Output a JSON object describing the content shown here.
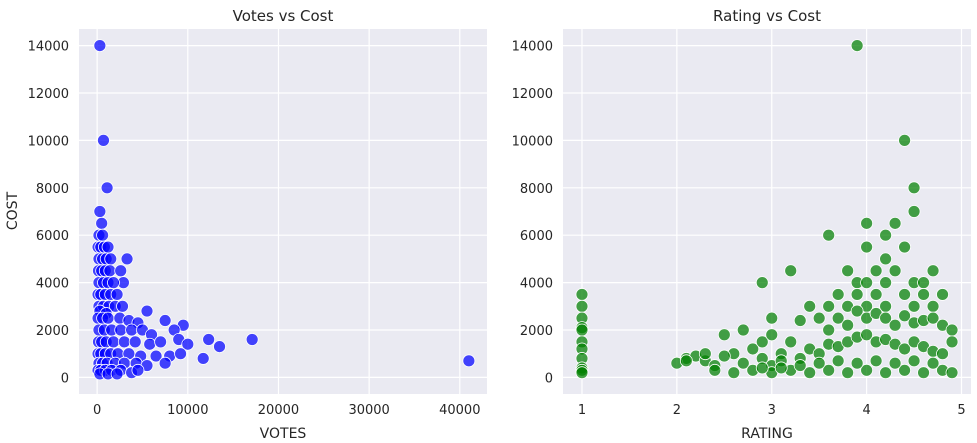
{
  "chart_data": [
    {
      "type": "scatter",
      "title": "Votes vs Cost",
      "xlabel": "VOTES",
      "ylabel": "COST",
      "xlim": [
        -2000,
        43000
      ],
      "ylim": [
        -700,
        14700
      ],
      "xticks": [
        0,
        10000,
        20000,
        30000,
        40000
      ],
      "yticks": [
        0,
        2000,
        4000,
        6000,
        8000,
        10000,
        12000,
        14000
      ],
      "grid": true,
      "color": "#0000ff",
      "points": [
        [
          300,
          14000
        ],
        [
          700,
          10000
        ],
        [
          1100,
          8000
        ],
        [
          300,
          7000
        ],
        [
          500,
          6500
        ],
        [
          200,
          6000
        ],
        [
          600,
          6000
        ],
        [
          100,
          5500
        ],
        [
          400,
          5500
        ],
        [
          800,
          5500
        ],
        [
          1200,
          5500
        ],
        [
          3300,
          5000
        ],
        [
          200,
          5000
        ],
        [
          600,
          5000
        ],
        [
          1000,
          5000
        ],
        [
          1500,
          5000
        ],
        [
          150,
          4500
        ],
        [
          500,
          4500
        ],
        [
          900,
          4500
        ],
        [
          1400,
          4500
        ],
        [
          2600,
          4500
        ],
        [
          2900,
          4000
        ],
        [
          200,
          4000
        ],
        [
          700,
          4000
        ],
        [
          1200,
          4000
        ],
        [
          1800,
          4000
        ],
        [
          100,
          3500
        ],
        [
          400,
          3500
        ],
        [
          900,
          3500
        ],
        [
          1500,
          3500
        ],
        [
          2200,
          3500
        ],
        [
          200,
          3000
        ],
        [
          700,
          3000
        ],
        [
          1300,
          3000
        ],
        [
          2000,
          3000
        ],
        [
          2800,
          3000
        ],
        [
          300,
          2800
        ],
        [
          1000,
          2700
        ],
        [
          5500,
          2800
        ],
        [
          7500,
          2400
        ],
        [
          9500,
          2200
        ],
        [
          100,
          2500
        ],
        [
          600,
          2500
        ],
        [
          1200,
          2500
        ],
        [
          2500,
          2500
        ],
        [
          3500,
          2400
        ],
        [
          4500,
          2300
        ],
        [
          200,
          2000
        ],
        [
          800,
          2000
        ],
        [
          1600,
          2000
        ],
        [
          2600,
          2000
        ],
        [
          3800,
          2000
        ],
        [
          5000,
          2000
        ],
        [
          6000,
          1800
        ],
        [
          8500,
          2000
        ],
        [
          150,
          1500
        ],
        [
          500,
          1500
        ],
        [
          1000,
          1500
        ],
        [
          1800,
          1500
        ],
        [
          3000,
          1500
        ],
        [
          4200,
          1500
        ],
        [
          5800,
          1400
        ],
        [
          7000,
          1500
        ],
        [
          9000,
          1600
        ],
        [
          10000,
          1400
        ],
        [
          12300,
          1600
        ],
        [
          13500,
          1300
        ],
        [
          17100,
          1600
        ],
        [
          100,
          1000
        ],
        [
          400,
          1000
        ],
        [
          900,
          1000
        ],
        [
          1500,
          1000
        ],
        [
          2300,
          1000
        ],
        [
          3500,
          1000
        ],
        [
          4800,
          900
        ],
        [
          6500,
          900
        ],
        [
          8000,
          900
        ],
        [
          9200,
          1000
        ],
        [
          11700,
          800
        ],
        [
          200,
          600
        ],
        [
          600,
          600
        ],
        [
          1100,
          600
        ],
        [
          2000,
          600
        ],
        [
          3000,
          600
        ],
        [
          4300,
          600
        ],
        [
          5500,
          500
        ],
        [
          7500,
          600
        ],
        [
          41000,
          700
        ],
        [
          100,
          300
        ],
        [
          400,
          300
        ],
        [
          900,
          300
        ],
        [
          1600,
          300
        ],
        [
          2600,
          300
        ],
        [
          3800,
          200
        ],
        [
          4500,
          300
        ],
        [
          300,
          150
        ],
        [
          1200,
          150
        ],
        [
          2200,
          150
        ]
      ]
    },
    {
      "type": "scatter",
      "title": "Rating vs Cost",
      "xlabel": "RATING",
      "ylabel": "",
      "xlim": [
        0.8,
        5.1
      ],
      "ylim": [
        -700,
        14700
      ],
      "xticks": [
        1,
        2,
        3,
        4,
        5
      ],
      "yticks": [
        0,
        2000,
        4000,
        6000,
        8000,
        10000,
        12000,
        14000
      ],
      "grid": true,
      "color": "#008000",
      "points": [
        [
          1,
          3500
        ],
        [
          1,
          3000
        ],
        [
          1,
          2500
        ],
        [
          1,
          2100
        ],
        [
          1,
          2000
        ],
        [
          1,
          1500
        ],
        [
          1,
          1200
        ],
        [
          1,
          800
        ],
        [
          1,
          400
        ],
        [
          1,
          300
        ],
        [
          1,
          200
        ],
        [
          3.9,
          14000
        ],
        [
          4.4,
          10000
        ],
        [
          4.5,
          8000
        ],
        [
          4.5,
          7000
        ],
        [
          4.0,
          6500
        ],
        [
          3.6,
          6000
        ],
        [
          4.2,
          6000
        ],
        [
          4.3,
          6500
        ],
        [
          4.0,
          5500
        ],
        [
          4.4,
          5500
        ],
        [
          4.2,
          5000
        ],
        [
          3.2,
          4500
        ],
        [
          2.9,
          4000
        ],
        [
          3.8,
          4500
        ],
        [
          4.1,
          4500
        ],
        [
          4.3,
          4500
        ],
        [
          4.7,
          4500
        ],
        [
          3.9,
          4000
        ],
        [
          4.0,
          4000
        ],
        [
          4.2,
          4000
        ],
        [
          4.5,
          4000
        ],
        [
          4.6,
          4000
        ],
        [
          3.7,
          3500
        ],
        [
          3.9,
          3500
        ],
        [
          4.1,
          3500
        ],
        [
          4.4,
          3500
        ],
        [
          4.6,
          3500
        ],
        [
          4.8,
          3500
        ],
        [
          3.4,
          3000
        ],
        [
          3.6,
          3000
        ],
        [
          3.8,
          3000
        ],
        [
          4.0,
          3000
        ],
        [
          4.2,
          3000
        ],
        [
          4.5,
          3000
        ],
        [
          4.7,
          3000
        ],
        [
          2.1,
          800
        ],
        [
          2.2,
          900
        ],
        [
          2.3,
          700
        ],
        [
          2.4,
          500
        ],
        [
          2.5,
          1800
        ],
        [
          2.6,
          1000
        ],
        [
          2.7,
          2000
        ],
        [
          2.8,
          1200
        ],
        [
          2.9,
          1500
        ],
        [
          3.0,
          2500
        ],
        [
          3.0,
          1800
        ],
        [
          3.1,
          1000
        ],
        [
          3.2,
          1500
        ],
        [
          3.3,
          2400
        ],
        [
          3.5,
          2500
        ],
        [
          3.6,
          2000
        ],
        [
          3.7,
          2500
        ],
        [
          3.8,
          2200
        ],
        [
          3.9,
          2800
        ],
        [
          4.0,
          2500
        ],
        [
          4.1,
          2700
        ],
        [
          4.2,
          2500
        ],
        [
          4.3,
          2200
        ],
        [
          4.4,
          2600
        ],
        [
          4.5,
          2300
        ],
        [
          4.6,
          2400
        ],
        [
          4.7,
          2500
        ],
        [
          4.8,
          2200
        ],
        [
          4.9,
          2000
        ],
        [
          2.0,
          600
        ],
        [
          2.1,
          700
        ],
        [
          2.3,
          1000
        ],
        [
          2.5,
          900
        ],
        [
          2.7,
          600
        ],
        [
          2.9,
          800
        ],
        [
          3.0,
          500
        ],
        [
          3.1,
          700
        ],
        [
          3.3,
          800
        ],
        [
          3.4,
          1200
        ],
        [
          3.5,
          1000
        ],
        [
          3.6,
          1400
        ],
        [
          3.7,
          1300
        ],
        [
          3.8,
          1500
        ],
        [
          3.9,
          1700
        ],
        [
          4.0,
          1800
        ],
        [
          4.1,
          1500
        ],
        [
          4.2,
          1600
        ],
        [
          4.3,
          1400
        ],
        [
          4.4,
          1200
        ],
        [
          4.5,
          1500
        ],
        [
          4.6,
          1300
        ],
        [
          4.7,
          1100
        ],
        [
          4.8,
          1000
        ],
        [
          4.9,
          1500
        ],
        [
          2.4,
          300
        ],
        [
          2.6,
          200
        ],
        [
          2.8,
          300
        ],
        [
          3.0,
          200
        ],
        [
          3.2,
          300
        ],
        [
          3.4,
          200
        ],
        [
          3.6,
          300
        ],
        [
          3.8,
          200
        ],
        [
          4.0,
          300
        ],
        [
          4.2,
          200
        ],
        [
          4.4,
          300
        ],
        [
          4.6,
          200
        ],
        [
          4.8,
          300
        ],
        [
          4.9,
          200
        ],
        [
          3.5,
          600
        ],
        [
          3.7,
          700
        ],
        [
          3.9,
          600
        ],
        [
          4.1,
          700
        ],
        [
          4.3,
          600
        ],
        [
          4.5,
          700
        ],
        [
          4.7,
          600
        ],
        [
          3.3,
          500
        ],
        [
          3.1,
          400
        ],
        [
          2.9,
          400
        ]
      ]
    }
  ]
}
